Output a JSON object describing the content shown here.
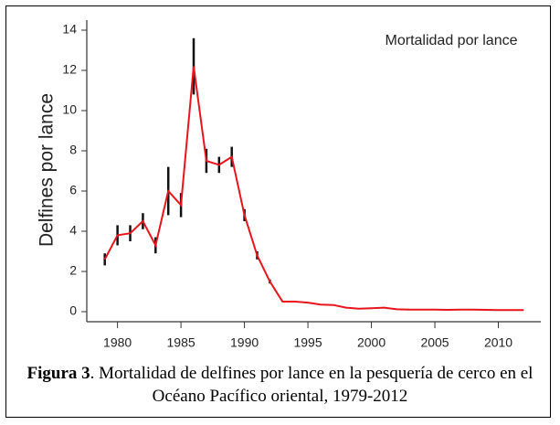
{
  "chart_data": {
    "type": "line",
    "y_label": "Delfines por lance",
    "annotation": "Mortalidad por lance",
    "caption_label": "Figura 3",
    "caption": ". Mortalidad de delfines por lance en la pesquería de cerco en el Océano Pacífico oriental, 1979-2012",
    "x": [
      1979,
      1980,
      1981,
      1982,
      1983,
      1984,
      1985,
      1986,
      1987,
      1988,
      1989,
      1990,
      1991,
      1992,
      1993,
      1994,
      1995,
      1996,
      1997,
      1998,
      1999,
      2000,
      2001,
      2002,
      2003,
      2004,
      2005,
      2006,
      2007,
      2008,
      2009,
      2010,
      2011,
      2012
    ],
    "series": [
      {
        "name": "Mortalidad por lance",
        "color": "#e8141c",
        "values": [
          2.6,
          3.8,
          3.9,
          4.5,
          3.3,
          6.0,
          5.3,
          12.2,
          7.5,
          7.3,
          7.7,
          4.8,
          2.8,
          1.5,
          0.5,
          0.5,
          0.45,
          0.35,
          0.33,
          0.2,
          0.15,
          0.17,
          0.2,
          0.12,
          0.1,
          0.1,
          0.1,
          0.09,
          0.1,
          0.1,
          0.09,
          0.08,
          0.08,
          0.08
        ],
        "errors": [
          0.3,
          0.5,
          0.4,
          0.4,
          0.4,
          1.2,
          0.6,
          1.4,
          0.6,
          0.4,
          0.5,
          0.3,
          0.2,
          0.1,
          null,
          null,
          null,
          null,
          null,
          null,
          null,
          null,
          null,
          null,
          null,
          null,
          null,
          null,
          null,
          null,
          null,
          null,
          null,
          null
        ]
      }
    ],
    "xlim": [
      1978.3,
      2013.2
    ],
    "xticks": [
      1980,
      1985,
      1990,
      1995,
      2000,
      2005,
      2010
    ],
    "ylim": [
      -0.5,
      14.5
    ],
    "yticks": [
      0,
      2,
      4,
      6,
      8,
      10,
      12,
      14
    ]
  }
}
